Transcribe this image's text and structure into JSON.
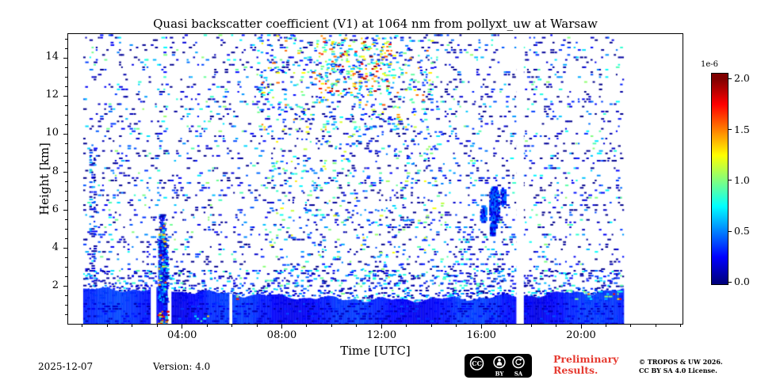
{
  "colors": {
    "preliminary_red": "#e63a30",
    "axis_black": "#000000"
  },
  "footer": {
    "date": "2025-12-07",
    "version": "Version: 4.0",
    "preliminary_line1": "Preliminary",
    "preliminary_line2": "Results.",
    "copyright_line1": "© TROPOS & UW 2026.",
    "copyright_line2": "CC BY SA 4.0 License.",
    "badge": {
      "cc_label": "CC",
      "by_label": "BY",
      "sa_label": "SA"
    }
  },
  "chart_data": {
    "type": "heatmap",
    "title": "Quasi backscatter coefficient (V1) at 1064 nm from pollyxt_uw at Warsaw",
    "xlabel": "Time [UTC]",
    "ylabel": "Height [km]",
    "x_axis": {
      "unit": "hours UTC",
      "min": -0.6,
      "max": 24.1,
      "major_ticks": [
        {
          "hour": 4,
          "label": "04:00"
        },
        {
          "hour": 8,
          "label": "08:00"
        },
        {
          "hour": 12,
          "label": "12:00"
        },
        {
          "hour": 16,
          "label": "16:00"
        },
        {
          "hour": 20,
          "label": "20:00"
        }
      ]
    },
    "y_axis": {
      "unit": "km",
      "min": 0,
      "max": 15.3,
      "major_ticks": [
        2,
        4,
        6,
        8,
        10,
        12,
        14
      ]
    },
    "colorbar": {
      "exponent_label": "1e-6",
      "vmin": 0,
      "vmax": 2,
      "colormap": "jet",
      "ticks": [
        {
          "value": 2.0,
          "label": "2.0"
        },
        {
          "value": 1.5,
          "label": "1.5"
        },
        {
          "value": 1.0,
          "label": "1.0"
        },
        {
          "value": 0.5,
          "label": "0.5"
        },
        {
          "value": 0.0,
          "label": "0.0"
        }
      ]
    },
    "data_start_hour": 0,
    "data_end_hour": 21.75,
    "seed": 20251207,
    "boundary_layer": {
      "base_km": 1.25,
      "amp_km": 0.275,
      "peak_hour": 12.5,
      "fill_value": 0.27,
      "texture": {
        "p": 0.3,
        "vmin": 0.08,
        "vmax": 0.42,
        "bias": 1.5
      }
    },
    "noise_regions": [
      {
        "name": "background-speckle",
        "t0": 0,
        "t1": 21.75,
        "h0": 1.5,
        "h1": 15.3,
        "p": 0.105,
        "vmin": 0.02,
        "vmax": 1.05,
        "bias": 2.6
      },
      {
        "name": "above-layer-band",
        "t0": 0,
        "t1": 21.75,
        "h0": 1.15,
        "h1": 2.9,
        "p": 0.2,
        "vmin": 0.05,
        "vmax": 1.0,
        "bias": 2.0
      },
      {
        "name": "early-left-column",
        "t0": 0.25,
        "t1": 0.5,
        "h0": 1.8,
        "h1": 9.5,
        "p": 0.38,
        "vmin": 0.05,
        "vmax": 0.8,
        "bias": 2.0
      },
      {
        "name": "midday-mid-level",
        "t0": 7.5,
        "t1": 14.5,
        "h0": 2.5,
        "h1": 10.5,
        "p": 0.055,
        "vmin": 0.3,
        "vmax": 1.3,
        "bias": 1.8
      },
      {
        "name": "elevated-aerosol-layer",
        "t0": 7.0,
        "t1": 14.0,
        "h0": 10.3,
        "h1": 15.3,
        "p": 0.11,
        "vmin": 0.25,
        "vmax": 1.6,
        "bias": 1.5
      },
      {
        "name": "elevated-aerosol-core",
        "t0": 9.3,
        "t1": 12.3,
        "h0": 12.2,
        "h1": 15.0,
        "p": 0.17,
        "vmin": 0.5,
        "vmax": 2.0,
        "bias": 1.2
      },
      {
        "name": "afternoon-low-level",
        "t0": 14.5,
        "t1": 17.3,
        "h0": 1.5,
        "h1": 5.2,
        "p": 0.09,
        "vmin": 0.05,
        "vmax": 0.9,
        "bias": 2.2
      }
    ],
    "overlay_regions": [
      {
        "name": "morning-plume-core",
        "t0": 3.02,
        "t1": 3.32,
        "h0": 1.2,
        "h1": 4.7,
        "p": 0.8,
        "vmin": 0.08,
        "vmax": 0.7,
        "bias": 1.6,
        "dt": 0.05,
        "dh": 0.09
      },
      {
        "name": "morning-plume-top",
        "t0": 3.05,
        "t1": 3.28,
        "h0": 4.7,
        "h1": 5.8,
        "p": 0.45,
        "vmin": 0.08,
        "vmax": 0.6,
        "bias": 1.5,
        "dt": 0.05,
        "dh": 0.09
      },
      {
        "name": "morning-plume-bright-flecks",
        "t0": 3.02,
        "t1": 3.3,
        "h0": 1.5,
        "h1": 5.5,
        "p": 0.1,
        "vmin": 0.7,
        "vmax": 1.7,
        "bias": 1.0,
        "dt": 0.05,
        "dh": 0.12
      },
      {
        "name": "surface-event-0300",
        "t0": 2.95,
        "t1": 3.4,
        "h0": 0.05,
        "h1": 0.7,
        "p": 0.3,
        "vmin": 0.3,
        "vmax": 2.0,
        "bias": 1.0,
        "dt": 0.05,
        "dh": 0.09
      },
      {
        "name": "surface-event-0430",
        "t0": 4.3,
        "t1": 5.1,
        "h0": 0.05,
        "h1": 0.5,
        "p": 0.12,
        "vmin": 0.3,
        "vmax": 1.5,
        "bias": 1.2
      },
      {
        "name": "evening-layer-top-streaks",
        "t0": 19.6,
        "t1": 21.6,
        "h0": 1.35,
        "h1": 1.8,
        "p": 0.22,
        "vmin": 0.4,
        "vmax": 1.9,
        "bias": 1.1
      },
      {
        "name": "bright-spot-0615",
        "t0": 6.15,
        "t1": 6.4,
        "h0": 1.35,
        "h1": 1.6,
        "p": 0.3,
        "vmin": 0.8,
        "vmax": 1.8,
        "bias": 1.0
      }
    ],
    "cloud_style": {
      "p": 0.85,
      "vmin": 0.08,
      "vmax": 0.55
    },
    "clouds": [
      {
        "t": 16.05,
        "h": 5.85,
        "rt": 0.14,
        "rh": 0.5
      },
      {
        "t": 16.5,
        "h": 6.2,
        "rt": 0.22,
        "rh": 1.15
      },
      {
        "t": 16.85,
        "h": 6.75,
        "rt": 0.12,
        "rh": 0.55
      },
      {
        "t": 16.42,
        "h": 5.0,
        "rt": 0.12,
        "rh": 0.35
      }
    ],
    "gaps": [
      {
        "t0": 2.72,
        "t1": 2.95,
        "h0": 0,
        "h1": 1.95
      },
      {
        "t0": 3.4,
        "t1": 3.55,
        "h0": 0,
        "h1": 1.95
      },
      {
        "t0": 5.88,
        "t1": 6.0,
        "h0": 0,
        "h1": 1.6
      },
      {
        "t0": 17.42,
        "t1": 17.72,
        "h0": 0,
        "h1": 15.3
      }
    ]
  }
}
